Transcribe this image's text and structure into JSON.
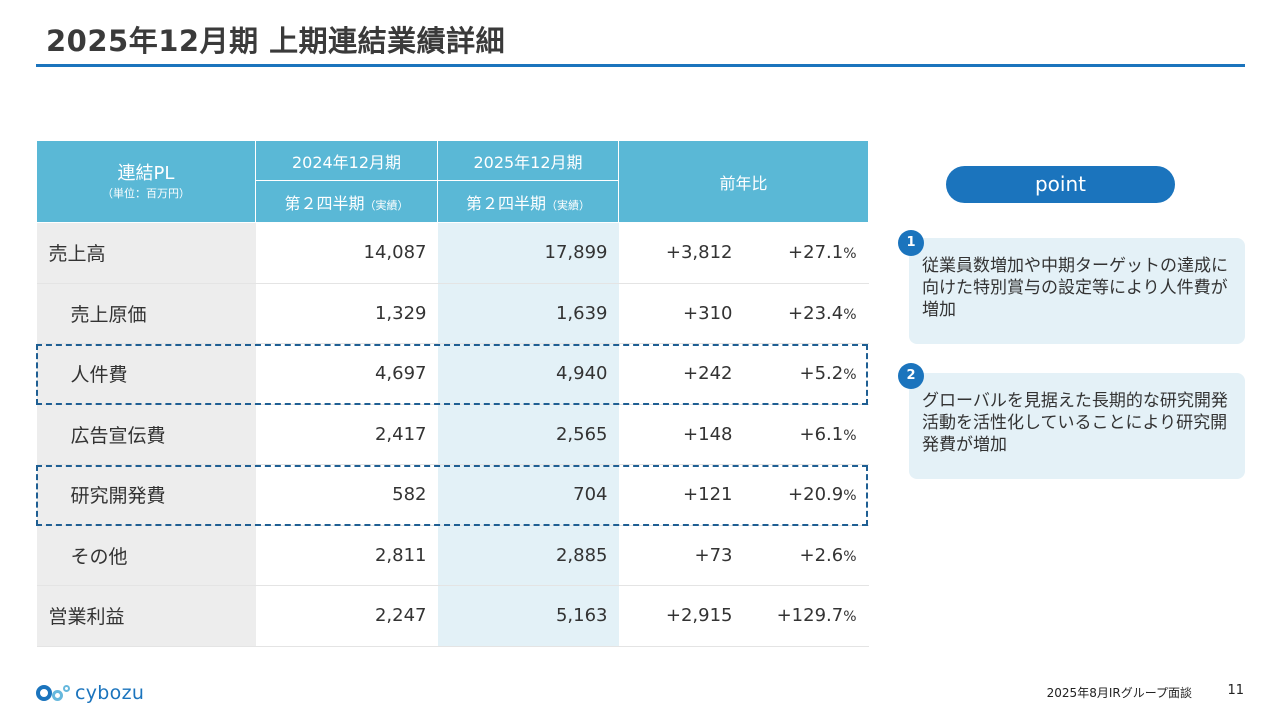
{
  "title": "2025年12月期 上期連結業績詳細",
  "table": {
    "header": {
      "label_main": "連結PL",
      "label_unit": "（単位：百万円）",
      "prev_period": "2024年12月期",
      "cur_period": "2025年12月期",
      "yoy": "前年比",
      "prev_quarter": "第２四半期",
      "prev_quarter_note": "（実績）",
      "cur_quarter": "第２四半期",
      "cur_quarter_note": "（実績）"
    },
    "rows": [
      {
        "label": "売上高",
        "prev": "14,087",
        "cur": "17,899",
        "diff": "+3,812",
        "pct": "+27.1",
        "sub": false,
        "highlight": false
      },
      {
        "label": "売上原価",
        "prev": "1,329",
        "cur": "1,639",
        "diff": "+310",
        "pct": "+23.4",
        "sub": true,
        "highlight": false
      },
      {
        "label": "人件費",
        "prev": "4,697",
        "cur": "4,940",
        "diff": "+242",
        "pct": "+5.2",
        "sub": true,
        "highlight": true
      },
      {
        "label": "広告宣伝費",
        "prev": "2,417",
        "cur": "2,565",
        "diff": "+148",
        "pct": "+6.1",
        "sub": true,
        "highlight": false
      },
      {
        "label": "研究開発費",
        "prev": "582",
        "cur": "704",
        "diff": "+121",
        "pct": "+20.9",
        "sub": true,
        "highlight": true
      },
      {
        "label": "その他",
        "prev": "2,811",
        "cur": "2,885",
        "diff": "+73",
        "pct": "+2.6",
        "sub": true,
        "highlight": false
      },
      {
        "label": "営業利益",
        "prev": "2,247",
        "cur": "5,163",
        "diff": "+2,915",
        "pct": "+129.7",
        "sub": false,
        "highlight": false
      }
    ],
    "pct_sign": "%"
  },
  "point": {
    "title": "point",
    "items": [
      {
        "number": "1",
        "text": "従業員数増加や中期ターゲットの達成に向けた特別賞与の設定等により人件費が増加"
      },
      {
        "number": "2",
        "text": "グローバルを見据えた長期的な研究開発活動を活性化していることにより研究開発費が増加"
      }
    ]
  },
  "footer": {
    "logo_text": "cybozu",
    "note": "2025年8月IRグループ面談",
    "page": "11"
  },
  "colors": {
    "accent": "#1b74bd",
    "header_bg": "#5ab8d6",
    "current_col_bg": "#e3f1f7",
    "label_bg": "#ededed",
    "point_bg": "#e4f1f7"
  }
}
